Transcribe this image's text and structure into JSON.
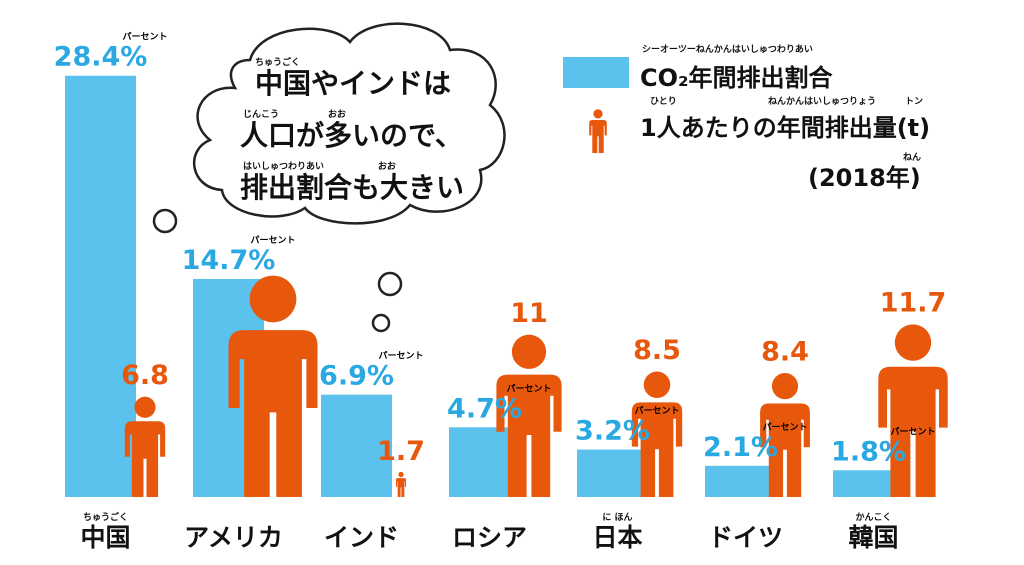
{
  "chart_data": {
    "type": "bar",
    "categories": [
      "中国",
      "アメリカ",
      "インド",
      "ロシア",
      "日本",
      "ドイツ",
      "韓国"
    ],
    "category_ruby": [
      "ちゅうごく",
      null,
      null,
      null,
      "に ほん",
      null,
      "かんこく"
    ],
    "ylim": [
      0,
      30
    ],
    "y2lim": [
      0,
      30
    ],
    "series": [
      {
        "name": "CO₂年間排出割合",
        "name_ruby": [
          "シーオーツーねんかんはいしゅつわりあい"
        ],
        "color": "#5bc2ee",
        "values": [
          28.4,
          14.7,
          6.9,
          4.7,
          3.2,
          2.1,
          1.8
        ],
        "value_labels": [
          "28.4%",
          "14.7%",
          "6.9%",
          "4.7%",
          "3.2%",
          "2.1%",
          "1.8%"
        ],
        "value_ruby": "パーセント"
      },
      {
        "name": "1人あたりの年間排出量(t)",
        "name_ruby": [
          "ひとり",
          "ねんかんはいしゅつりょう",
          "トン"
        ],
        "color": "#e8580c",
        "axis": "y2",
        "values": [
          6.8,
          15,
          1.7,
          11,
          8.5,
          8.4,
          11.7
        ],
        "value_labels": [
          "6.8",
          null,
          "1.7",
          "11",
          "8.5",
          "8.4",
          "11.7"
        ]
      }
    ],
    "note": "(2018年)",
    "note_ruby": "ねん",
    "callout": [
      {
        "text": "中国やインドは",
        "ruby": [
          "ちゅうごく"
        ]
      },
      {
        "text": "人口が多いので、",
        "ruby": [
          "じんこう",
          "おお"
        ]
      },
      {
        "text": "排出割合も大きい",
        "ruby": [
          "はいしゅつわりあい",
          "おお"
        ]
      }
    ]
  }
}
